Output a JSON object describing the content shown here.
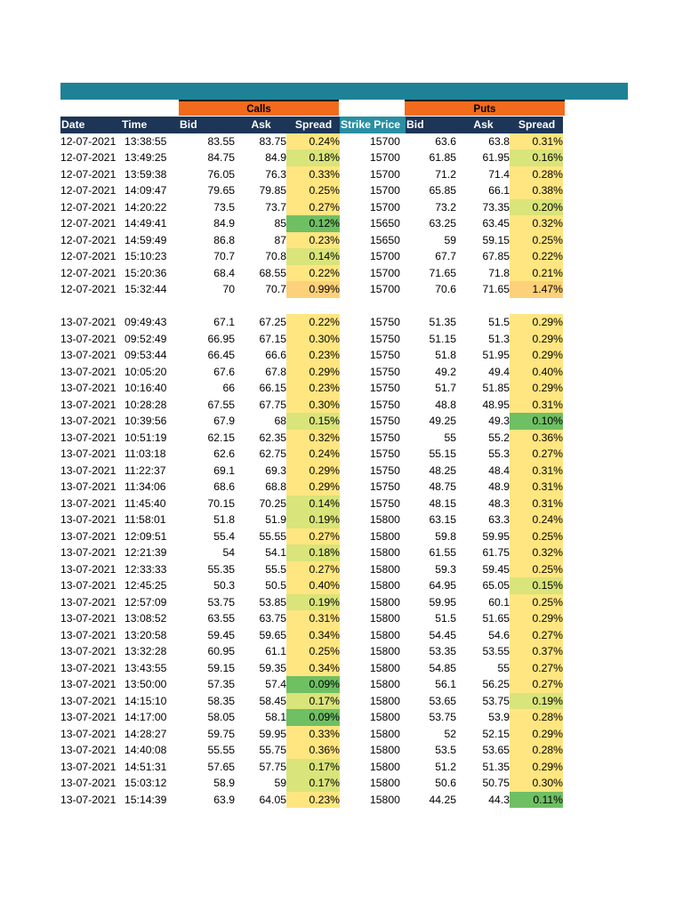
{
  "headers": {
    "calls": "Calls",
    "puts": "Puts",
    "date": "Date",
    "time": "Time",
    "call_bid": "Bid",
    "call_ask": "Ask",
    "call_spread": "Spread",
    "strike": "Strike Price",
    "put_bid": "Bid",
    "put_ask": "Ask",
    "put_spread": "Spread"
  },
  "colors": {
    "banner": "#1f8196",
    "group_header": "#f26b1d",
    "column_header": "#1d3557",
    "strike_header": "#2a8fa3",
    "spread_low": "#6fbf63",
    "spread_mid": "#d9e47a",
    "spread_high": "#ffe680",
    "spread_max": "#fdd17a"
  },
  "rows": [
    {
      "date": "12-07-2021",
      "time": "13:38:55",
      "call_bid": "83.55",
      "call_ask": "83.75",
      "call_spread": "0.24%",
      "strike": "15700",
      "put_bid": "63.6",
      "put_ask": "63.8",
      "put_spread": "0.31%"
    },
    {
      "date": "12-07-2021",
      "time": "13:49:25",
      "call_bid": "84.75",
      "call_ask": "84.9",
      "call_spread": "0.18%",
      "strike": "15700",
      "put_bid": "61.85",
      "put_ask": "61.95",
      "put_spread": "0.16%"
    },
    {
      "date": "12-07-2021",
      "time": "13:59:38",
      "call_bid": "76.05",
      "call_ask": "76.3",
      "call_spread": "0.33%",
      "strike": "15700",
      "put_bid": "71.2",
      "put_ask": "71.4",
      "put_spread": "0.28%"
    },
    {
      "date": "12-07-2021",
      "time": "14:09:47",
      "call_bid": "79.65",
      "call_ask": "79.85",
      "call_spread": "0.25%",
      "strike": "15700",
      "put_bid": "65.85",
      "put_ask": "66.1",
      "put_spread": "0.38%"
    },
    {
      "date": "12-07-2021",
      "time": "14:20:22",
      "call_bid": "73.5",
      "call_ask": "73.7",
      "call_spread": "0.27%",
      "strike": "15700",
      "put_bid": "73.2",
      "put_ask": "73.35",
      "put_spread": "0.20%"
    },
    {
      "date": "12-07-2021",
      "time": "14:49:41",
      "call_bid": "84.9",
      "call_ask": "85",
      "call_spread": "0.12%",
      "strike": "15650",
      "put_bid": "63.25",
      "put_ask": "63.45",
      "put_spread": "0.32%"
    },
    {
      "date": "12-07-2021",
      "time": "14:59:49",
      "call_bid": "86.8",
      "call_ask": "87",
      "call_spread": "0.23%",
      "strike": "15650",
      "put_bid": "59",
      "put_ask": "59.15",
      "put_spread": "0.25%"
    },
    {
      "date": "12-07-2021",
      "time": "15:10:23",
      "call_bid": "70.7",
      "call_ask": "70.8",
      "call_spread": "0.14%",
      "strike": "15700",
      "put_bid": "67.7",
      "put_ask": "67.85",
      "put_spread": "0.22%"
    },
    {
      "date": "12-07-2021",
      "time": "15:20:36",
      "call_bid": "68.4",
      "call_ask": "68.55",
      "call_spread": "0.22%",
      "strike": "15700",
      "put_bid": "71.65",
      "put_ask": "71.8",
      "put_spread": "0.21%"
    },
    {
      "date": "12-07-2021",
      "time": "15:32:44",
      "call_bid": "70",
      "call_ask": "70.7",
      "call_spread": "0.99%",
      "strike": "15700",
      "put_bid": "70.6",
      "put_ask": "71.65",
      "put_spread": "1.47%"
    },
    {
      "gap": true
    },
    {
      "date": "13-07-2021",
      "time": "09:49:43",
      "call_bid": "67.1",
      "call_ask": "67.25",
      "call_spread": "0.22%",
      "strike": "15750",
      "put_bid": "51.35",
      "put_ask": "51.5",
      "put_spread": "0.29%"
    },
    {
      "date": "13-07-2021",
      "time": "09:52:49",
      "call_bid": "66.95",
      "call_ask": "67.15",
      "call_spread": "0.30%",
      "strike": "15750",
      "put_bid": "51.15",
      "put_ask": "51.3",
      "put_spread": "0.29%"
    },
    {
      "date": "13-07-2021",
      "time": "09:53:44",
      "call_bid": "66.45",
      "call_ask": "66.6",
      "call_spread": "0.23%",
      "strike": "15750",
      "put_bid": "51.8",
      "put_ask": "51.95",
      "put_spread": "0.29%"
    },
    {
      "date": "13-07-2021",
      "time": "10:05:20",
      "call_bid": "67.6",
      "call_ask": "67.8",
      "call_spread": "0.29%",
      "strike": "15750",
      "put_bid": "49.2",
      "put_ask": "49.4",
      "put_spread": "0.40%"
    },
    {
      "date": "13-07-2021",
      "time": "10:16:40",
      "call_bid": "66",
      "call_ask": "66.15",
      "call_spread": "0.23%",
      "strike": "15750",
      "put_bid": "51.7",
      "put_ask": "51.85",
      "put_spread": "0.29%"
    },
    {
      "date": "13-07-2021",
      "time": "10:28:28",
      "call_bid": "67.55",
      "call_ask": "67.75",
      "call_spread": "0.30%",
      "strike": "15750",
      "put_bid": "48.8",
      "put_ask": "48.95",
      "put_spread": "0.31%"
    },
    {
      "date": "13-07-2021",
      "time": "10:39:56",
      "call_bid": "67.9",
      "call_ask": "68",
      "call_spread": "0.15%",
      "strike": "15750",
      "put_bid": "49.25",
      "put_ask": "49.3",
      "put_spread": "0.10%"
    },
    {
      "date": "13-07-2021",
      "time": "10:51:19",
      "call_bid": "62.15",
      "call_ask": "62.35",
      "call_spread": "0.32%",
      "strike": "15750",
      "put_bid": "55",
      "put_ask": "55.2",
      "put_spread": "0.36%"
    },
    {
      "date": "13-07-2021",
      "time": "11:03:18",
      "call_bid": "62.6",
      "call_ask": "62.75",
      "call_spread": "0.24%",
      "strike": "15750",
      "put_bid": "55.15",
      "put_ask": "55.3",
      "put_spread": "0.27%"
    },
    {
      "date": "13-07-2021",
      "time": "11:22:37",
      "call_bid": "69.1",
      "call_ask": "69.3",
      "call_spread": "0.29%",
      "strike": "15750",
      "put_bid": "48.25",
      "put_ask": "48.4",
      "put_spread": "0.31%"
    },
    {
      "date": "13-07-2021",
      "time": "11:34:06",
      "call_bid": "68.6",
      "call_ask": "68.8",
      "call_spread": "0.29%",
      "strike": "15750",
      "put_bid": "48.75",
      "put_ask": "48.9",
      "put_spread": "0.31%"
    },
    {
      "date": "13-07-2021",
      "time": "11:45:40",
      "call_bid": "70.15",
      "call_ask": "70.25",
      "call_spread": "0.14%",
      "strike": "15750",
      "put_bid": "48.15",
      "put_ask": "48.3",
      "put_spread": "0.31%"
    },
    {
      "date": "13-07-2021",
      "time": "11:58:01",
      "call_bid": "51.8",
      "call_ask": "51.9",
      "call_spread": "0.19%",
      "strike": "15800",
      "put_bid": "63.15",
      "put_ask": "63.3",
      "put_spread": "0.24%"
    },
    {
      "date": "13-07-2021",
      "time": "12:09:51",
      "call_bid": "55.4",
      "call_ask": "55.55",
      "call_spread": "0.27%",
      "strike": "15800",
      "put_bid": "59.8",
      "put_ask": "59.95",
      "put_spread": "0.25%"
    },
    {
      "date": "13-07-2021",
      "time": "12:21:39",
      "call_bid": "54",
      "call_ask": "54.1",
      "call_spread": "0.18%",
      "strike": "15800",
      "put_bid": "61.55",
      "put_ask": "61.75",
      "put_spread": "0.32%"
    },
    {
      "date": "13-07-2021",
      "time": "12:33:33",
      "call_bid": "55.35",
      "call_ask": "55.5",
      "call_spread": "0.27%",
      "strike": "15800",
      "put_bid": "59.3",
      "put_ask": "59.45",
      "put_spread": "0.25%"
    },
    {
      "date": "13-07-2021",
      "time": "12:45:25",
      "call_bid": "50.3",
      "call_ask": "50.5",
      "call_spread": "0.40%",
      "strike": "15800",
      "put_bid": "64.95",
      "put_ask": "65.05",
      "put_spread": "0.15%"
    },
    {
      "date": "13-07-2021",
      "time": "12:57:09",
      "call_bid": "53.75",
      "call_ask": "53.85",
      "call_spread": "0.19%",
      "strike": "15800",
      "put_bid": "59.95",
      "put_ask": "60.1",
      "put_spread": "0.25%"
    },
    {
      "date": "13-07-2021",
      "time": "13:08:52",
      "call_bid": "63.55",
      "call_ask": "63.75",
      "call_spread": "0.31%",
      "strike": "15800",
      "put_bid": "51.5",
      "put_ask": "51.65",
      "put_spread": "0.29%"
    },
    {
      "date": "13-07-2021",
      "time": "13:20:58",
      "call_bid": "59.45",
      "call_ask": "59.65",
      "call_spread": "0.34%",
      "strike": "15800",
      "put_bid": "54.45",
      "put_ask": "54.6",
      "put_spread": "0.27%"
    },
    {
      "date": "13-07-2021",
      "time": "13:32:28",
      "call_bid": "60.95",
      "call_ask": "61.1",
      "call_spread": "0.25%",
      "strike": "15800",
      "put_bid": "53.35",
      "put_ask": "53.55",
      "put_spread": "0.37%"
    },
    {
      "date": "13-07-2021",
      "time": "13:43:55",
      "call_bid": "59.15",
      "call_ask": "59.35",
      "call_spread": "0.34%",
      "strike": "15800",
      "put_bid": "54.85",
      "put_ask": "55",
      "put_spread": "0.27%"
    },
    {
      "date": "13-07-2021",
      "time": "13:50:00",
      "call_bid": "57.35",
      "call_ask": "57.4",
      "call_spread": "0.09%",
      "strike": "15800",
      "put_bid": "56.1",
      "put_ask": "56.25",
      "put_spread": "0.27%"
    },
    {
      "date": "13-07-2021",
      "time": "14:15:10",
      "call_bid": "58.35",
      "call_ask": "58.45",
      "call_spread": "0.17%",
      "strike": "15800",
      "put_bid": "53.65",
      "put_ask": "53.75",
      "put_spread": "0.19%"
    },
    {
      "date": "13-07-2021",
      "time": "14:17:00",
      "call_bid": "58.05",
      "call_ask": "58.1",
      "call_spread": "0.09%",
      "strike": "15800",
      "put_bid": "53.75",
      "put_ask": "53.9",
      "put_spread": "0.28%"
    },
    {
      "date": "13-07-2021",
      "time": "14:28:27",
      "call_bid": "59.75",
      "call_ask": "59.95",
      "call_spread": "0.33%",
      "strike": "15800",
      "put_bid": "52",
      "put_ask": "52.15",
      "put_spread": "0.29%"
    },
    {
      "date": "13-07-2021",
      "time": "14:40:08",
      "call_bid": "55.55",
      "call_ask": "55.75",
      "call_spread": "0.36%",
      "strike": "15800",
      "put_bid": "53.5",
      "put_ask": "53.65",
      "put_spread": "0.28%"
    },
    {
      "date": "13-07-2021",
      "time": "14:51:31",
      "call_bid": "57.65",
      "call_ask": "57.75",
      "call_spread": "0.17%",
      "strike": "15800",
      "put_bid": "51.2",
      "put_ask": "51.35",
      "put_spread": "0.29%"
    },
    {
      "date": "13-07-2021",
      "time": "15:03:12",
      "call_bid": "58.9",
      "call_ask": "59",
      "call_spread": "0.17%",
      "strike": "15800",
      "put_bid": "50.6",
      "put_ask": "50.75",
      "put_spread": "0.30%"
    },
    {
      "date": "13-07-2021",
      "time": "15:14:39",
      "call_bid": "63.9",
      "call_ask": "64.05",
      "call_spread": "0.23%",
      "strike": "15800",
      "put_bid": "44.25",
      "put_ask": "44.3",
      "put_spread": "0.11%"
    }
  ]
}
